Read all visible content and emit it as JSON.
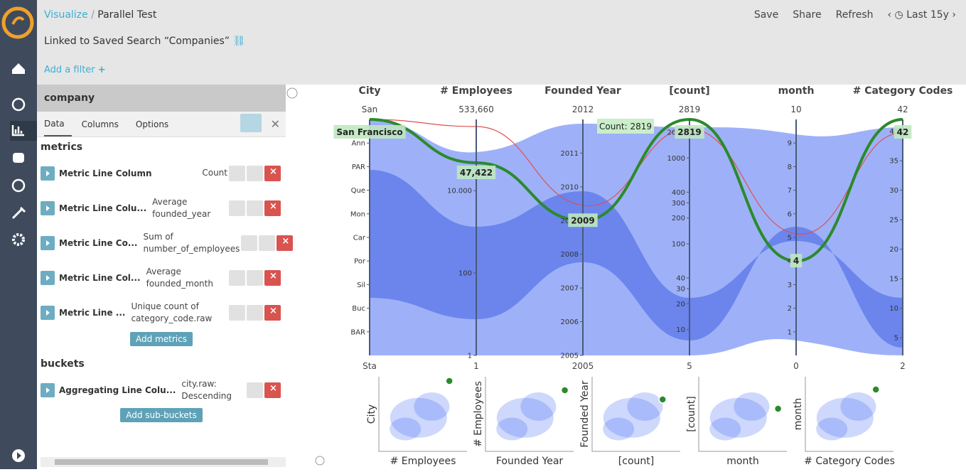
{
  "header": {
    "breadcrumb": [
      "Visualize",
      "Parallel Test"
    ],
    "actions": [
      "Save",
      "Share",
      "Refresh"
    ],
    "time_range": "Last 15y"
  },
  "linked_search": "Linked to Saved Search “Companies”",
  "add_filter": "Add a filter",
  "editor": {
    "index": "company",
    "tabs": [
      "Data",
      "Columns",
      "Options"
    ],
    "metrics_title": "metrics",
    "metrics": [
      {
        "label": "Metric Line Column",
        "description": "Count"
      },
      {
        "label": "Metric Line Colu...",
        "description": "Average founded_year"
      },
      {
        "label": "Metric Line Co...",
        "description": "Sum of number_of_employees"
      },
      {
        "label": "Metric Line Col...",
        "description": "Average founded_month"
      },
      {
        "label": "Metric Line ...",
        "description": "Unique count of category_code.raw"
      }
    ],
    "add_metrics": "Add metrics",
    "buckets_title": "buckets",
    "buckets": [
      {
        "label": "Aggregating Line Colu...",
        "description": "city.raw: Descending"
      }
    ],
    "add_sub_buckets": "Add sub-buckets"
  },
  "chart_data": {
    "type": "parallel",
    "axes": [
      {
        "name": "City",
        "scale": "category",
        "ends": [
          "Sta",
          "San"
        ],
        "ticks": [
          "Ann",
          "PAR",
          "Que",
          "Mon",
          "Car",
          "Por",
          "Sil",
          "Buc",
          "BAR"
        ]
      },
      {
        "name": "# Employees",
        "scale": "log",
        "ends": [
          1,
          {
            "value": 533660,
            "label": "533,660"
          }
        ],
        "ticks": [
          {
            "value": 10000,
            "label": "10.000"
          },
          100,
          1
        ]
      },
      {
        "name": "Founded Year",
        "scale": "linear",
        "ends": [
          2005,
          2012
        ],
        "ticks": [
          2005,
          2006,
          2007,
          2008,
          2009,
          2010,
          2011
        ]
      },
      {
        "name": "[count]",
        "scale": "log",
        "ends": [
          5,
          2819
        ],
        "ticks": [
          10,
          20,
          30,
          40,
          100,
          200,
          300,
          400,
          1000,
          2000
        ]
      },
      {
        "name": "month",
        "scale": "linear",
        "ends": [
          0,
          10
        ],
        "ticks": [
          1,
          2,
          3,
          4,
          5,
          6,
          7,
          8,
          9
        ]
      },
      {
        "name": "# Category Codes",
        "scale": "linear",
        "ends": [
          2,
          42
        ],
        "ticks": [
          5,
          10,
          15,
          20,
          25,
          30,
          35,
          40
        ]
      }
    ],
    "line_color": "#3d63f2",
    "highlight": {
      "color": "#2b8a2b",
      "values": [
        "San Francisco",
        47422,
        2009,
        2819,
        4,
        42
      ],
      "value_labels": [
        "San Francisco",
        "47,422",
        "2009",
        "2819",
        "4",
        "42"
      ]
    },
    "tooltip": "Count: 2819",
    "scatter_panels": [
      {
        "y_label": "City",
        "x_label": "# Employees"
      },
      {
        "y_label": "# Employees",
        "x_label": "Founded Year"
      },
      {
        "y_label": "Founded Year",
        "x_label": "[count]"
      },
      {
        "y_label": "[count]",
        "x_label": "month"
      },
      {
        "y_label": "month",
        "x_label": "# Category Codes"
      }
    ]
  }
}
